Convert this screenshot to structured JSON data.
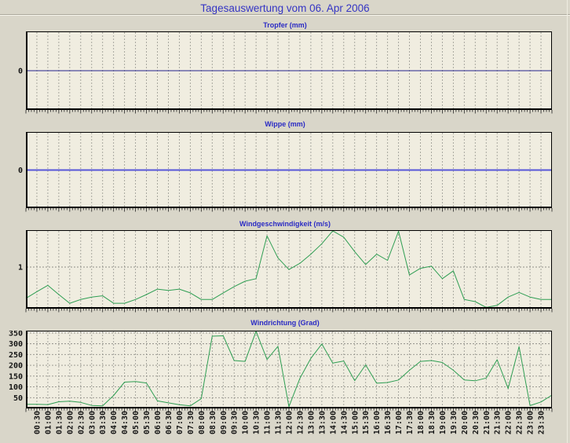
{
  "page": {
    "title": "Tagesauswertung vom 06. Apr 2006",
    "bg_color": "#d9d6c9",
    "plot_bg_color": "#f0ede0",
    "grid_color": "#a0a098",
    "frame_color": "#000000",
    "tick_color": "#222222",
    "title_color": "#3535c4",
    "chart_title_color": "#2a2ac4"
  },
  "time_labels": [
    "00:30",
    "01:00",
    "01:30",
    "02:00",
    "02:30",
    "03:00",
    "03:30",
    "04:00",
    "04:30",
    "05:00",
    "05:30",
    "06:00",
    "06:30",
    "07:00",
    "07:30",
    "08:00",
    "08:30",
    "09:00",
    "09:30",
    "10:00",
    "10:30",
    "11:00",
    "11:30",
    "12:00",
    "12:30",
    "13:00",
    "13:30",
    "14:00",
    "14:30",
    "15:00",
    "15:30",
    "16:00",
    "16:30",
    "17:00",
    "17:30",
    "18:00",
    "18:30",
    "19:00",
    "19:30",
    "20:00",
    "20:30",
    "21:00",
    "21:30",
    "22:00",
    "22:30",
    "23:00",
    "23:30"
  ],
  "chart_data": [
    {
      "type": "line",
      "title": "Tropfer (mm)",
      "line_color": "#24248e",
      "line_width": 1,
      "ylim": [
        -1,
        1
      ],
      "yticks": [
        0
      ],
      "hgrid": false,
      "x_step_minutes": 30,
      "values": [
        0,
        0,
        0,
        0,
        0,
        0,
        0,
        0,
        0,
        0,
        0,
        0,
        0,
        0,
        0,
        0,
        0,
        0,
        0,
        0,
        0,
        0,
        0,
        0,
        0,
        0,
        0,
        0,
        0,
        0,
        0,
        0,
        0,
        0,
        0,
        0,
        0,
        0,
        0,
        0,
        0,
        0,
        0,
        0,
        0,
        0,
        0,
        0,
        0
      ]
    },
    {
      "type": "line",
      "title": "Wippe (mm)",
      "line_color": "#5858d8",
      "line_width": 2,
      "ylim": [
        -1,
        1
      ],
      "yticks": [
        0
      ],
      "hgrid": false,
      "x_step_minutes": 30,
      "values": [
        0,
        0,
        0,
        0,
        0,
        0,
        0,
        0,
        0,
        0,
        0,
        0,
        0,
        0,
        0,
        0,
        0,
        0,
        0,
        0,
        0,
        0,
        0,
        0,
        0,
        0,
        0,
        0,
        0,
        0,
        0,
        0,
        0,
        0,
        0,
        0,
        0,
        0,
        0,
        0,
        0,
        0,
        0,
        0,
        0,
        0,
        0,
        0,
        0
      ]
    },
    {
      "type": "line",
      "title": "Windgeschwindigkeit (m/s)",
      "line_color": "#2f9e53",
      "line_width": 1,
      "ylim": [
        0,
        1.887
      ],
      "yticks": [
        1
      ],
      "hgrid": true,
      "x_step_minutes": 30,
      "values": [
        0.25,
        0.41,
        0.56,
        0.34,
        0.13,
        0.22,
        0.28,
        0.31,
        0.13,
        0.13,
        0.22,
        0.34,
        0.47,
        0.44,
        0.47,
        0.38,
        0.22,
        0.22,
        0.38,
        0.53,
        0.66,
        0.72,
        1.75,
        1.22,
        0.94,
        1.09,
        1.31,
        1.56,
        1.87,
        1.72,
        1.37,
        1.06,
        1.31,
        1.16,
        1.86,
        0.81,
        0.97,
        1.02,
        0.72,
        0.91,
        0.22,
        0.17,
        0.03,
        0.08,
        0.28,
        0.39,
        0.28,
        0.22,
        0.22
      ]
    },
    {
      "type": "line",
      "title": "Windrichtung (Grad)",
      "line_color": "#2f9e53",
      "line_width": 1,
      "ylim": [
        0,
        360.5
      ],
      "yticks": [
        50,
        100,
        150,
        200,
        250,
        300,
        350
      ],
      "hgrid": true,
      "x_step_minutes": 30,
      "values": [
        19,
        19,
        18,
        31,
        34,
        28,
        14,
        12,
        60,
        122,
        125,
        118,
        35,
        26,
        17,
        12,
        45,
        335,
        337,
        222,
        218,
        358,
        227,
        288,
        8,
        140,
        232,
        299,
        210,
        220,
        129,
        202,
        117,
        120,
        132,
        177,
        218,
        222,
        213,
        177,
        132,
        128,
        141,
        226,
        92,
        287,
        13,
        30,
        62
      ]
    }
  ]
}
